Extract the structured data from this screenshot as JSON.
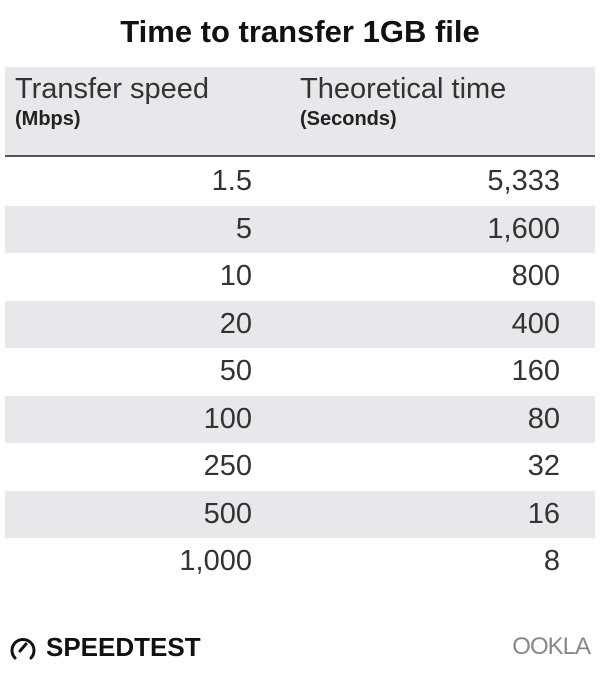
{
  "chart_data": {
    "type": "table",
    "title": "Time to transfer 1GB file",
    "columns": [
      {
        "label": "Transfer speed",
        "unit": "(Mbps)"
      },
      {
        "label": "Theoretical time",
        "unit": "(Seconds)"
      }
    ],
    "rows": [
      [
        "1.5",
        "5,333"
      ],
      [
        "5",
        "1,600"
      ],
      [
        "10",
        "800"
      ],
      [
        "20",
        "400"
      ],
      [
        "50",
        "160"
      ],
      [
        "100",
        "80"
      ],
      [
        "250",
        "32"
      ],
      [
        "500",
        "16"
      ],
      [
        "1,000",
        "8"
      ]
    ],
    "colors": {
      "header_bg": "#e8e8ec",
      "stripe": "#e8e8ec",
      "divider": "#555555"
    }
  },
  "footer": {
    "brand": "SPEEDTEST",
    "brand_icon": "speedometer-icon",
    "partner": "OOKLA"
  }
}
